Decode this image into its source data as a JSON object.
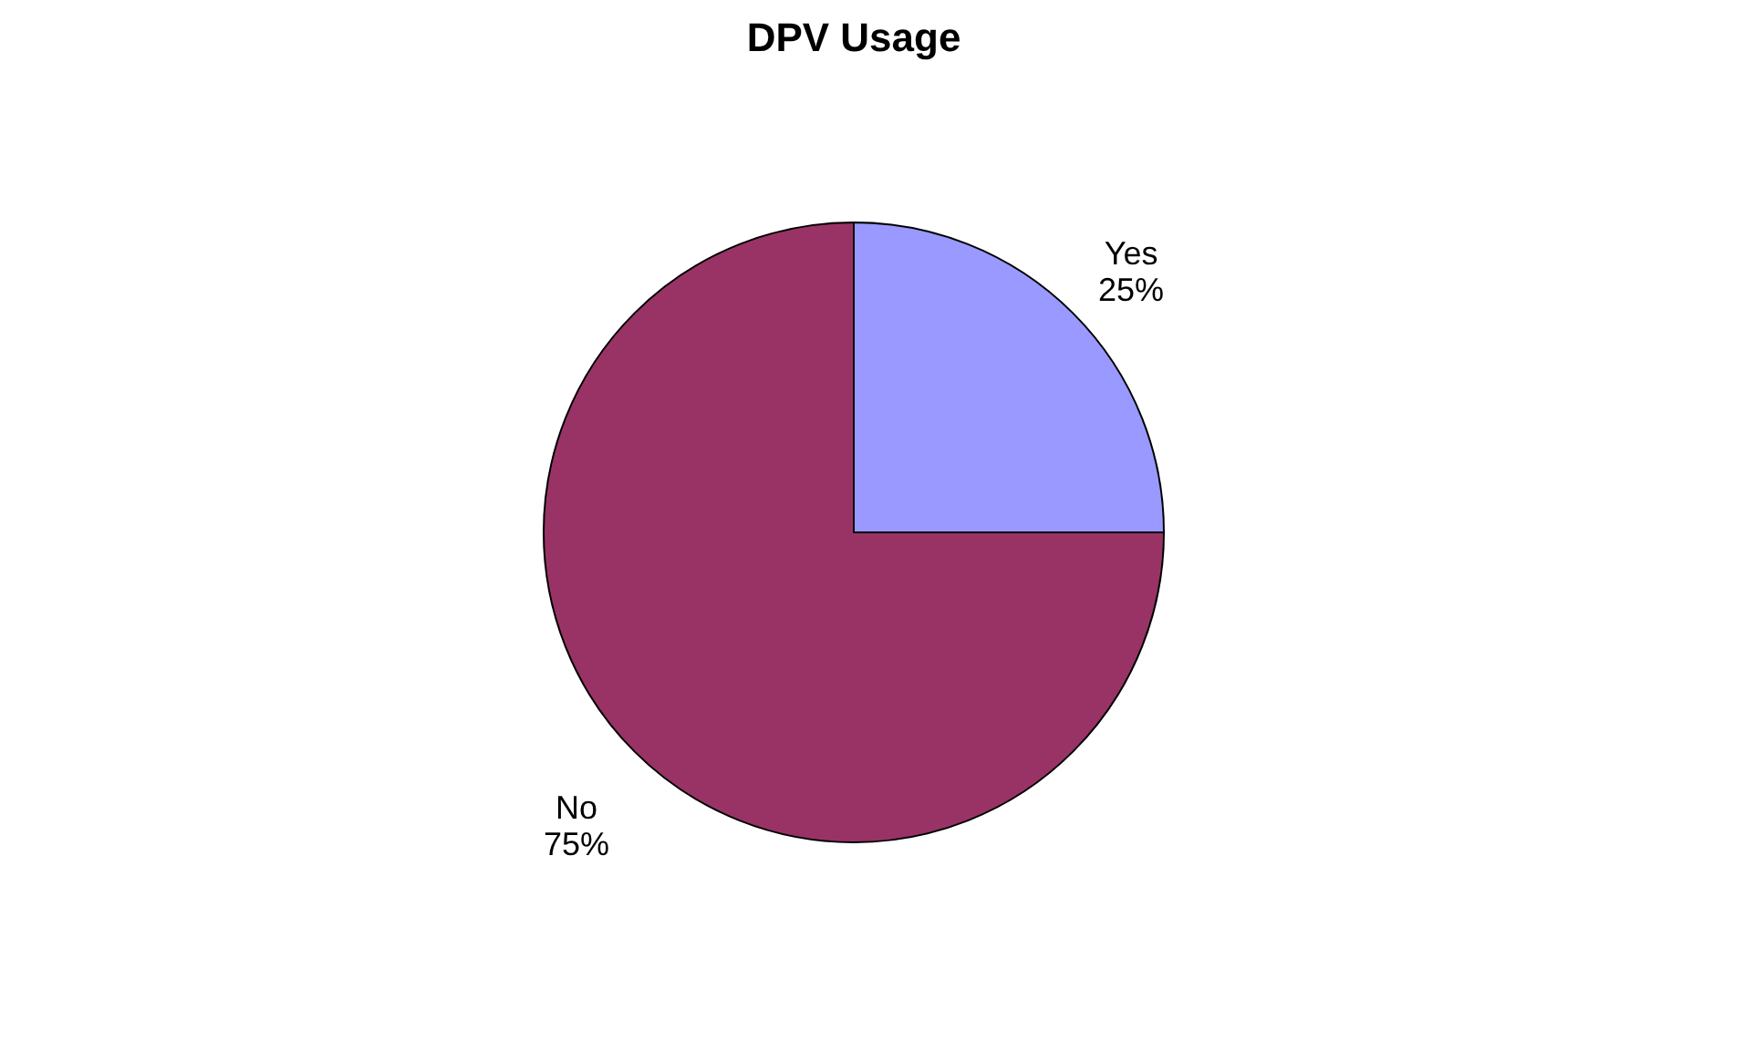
{
  "chart_data": {
    "type": "pie",
    "title": "DPV Usage",
    "categories": [
      "Yes",
      "No"
    ],
    "values": [
      25,
      75
    ],
    "colors": [
      "#9999ff",
      "#993366"
    ],
    "value_labels": [
      "25%",
      "75%"
    ],
    "legend": false
  }
}
